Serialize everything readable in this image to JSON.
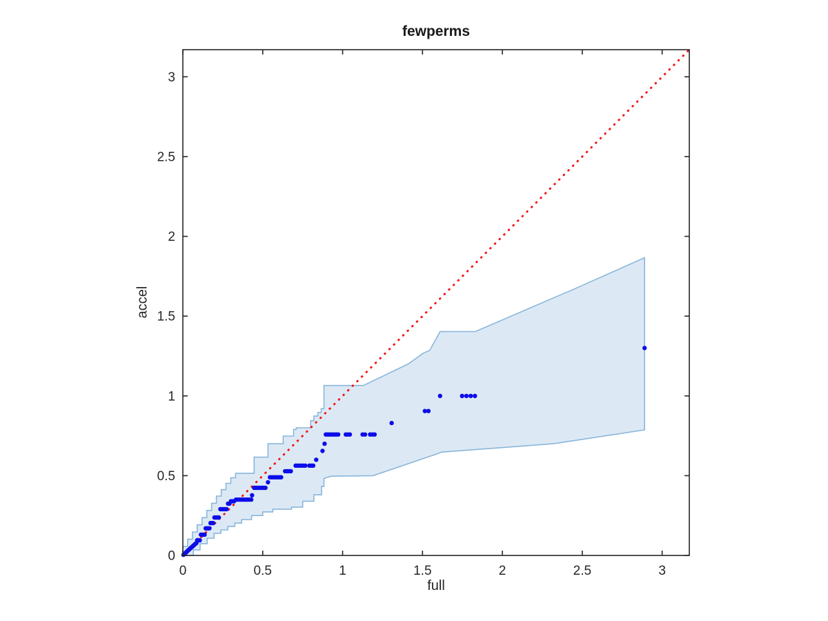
{
  "figure": {
    "background": "#ffffff"
  },
  "chart_data": {
    "type": "scatter",
    "title": "fewperms",
    "xlabel": "full",
    "ylabel": "accel",
    "xlim": [
      0,
      3.17
    ],
    "ylim": [
      0,
      3.17
    ],
    "xticks": [
      0,
      0.5,
      1,
      1.5,
      2,
      2.5,
      3
    ],
    "yticks": [
      0,
      0.5,
      1,
      1.5,
      2,
      2.5,
      3
    ],
    "xtick_labels": [
      "0",
      "0.5",
      "1",
      "1.5",
      "2",
      "2.5",
      "3"
    ],
    "ytick_labels": [
      "0",
      "0.5",
      "1",
      "1.5",
      "2",
      "2.5",
      "3"
    ],
    "grid": false,
    "legend": null,
    "box": true,
    "colors": {
      "band_fill": "#dce9f5",
      "band_edge": "#8ab6da",
      "points": "#0d0de8",
      "reference_line": "#f41412",
      "axis": "#262626"
    },
    "reference_line": {
      "meaning": "identity y = x",
      "style": "dotted",
      "from": [
        0,
        0
      ],
      "to": [
        3.17,
        3.17
      ]
    },
    "band": {
      "stepped_until_x": 0.9,
      "upper": [
        [
          0,
          0.012
        ],
        [
          0.03,
          0.057
        ],
        [
          0.06,
          0.102
        ],
        [
          0.09,
          0.147
        ],
        [
          0.12,
          0.192
        ],
        [
          0.15,
          0.237
        ],
        [
          0.18,
          0.282
        ],
        [
          0.21,
          0.327
        ],
        [
          0.24,
          0.372
        ],
        [
          0.27,
          0.412
        ],
        [
          0.3,
          0.452
        ],
        [
          0.33,
          0.487
        ],
        [
          0.364,
          0.515
        ],
        [
          0.446,
          0.515
        ],
        [
          0.468,
          0.616
        ],
        [
          0.533,
          0.616
        ],
        [
          0.628,
          0.7
        ],
        [
          0.693,
          0.748
        ],
        [
          0.71,
          0.79
        ],
        [
          0.8,
          0.8
        ],
        [
          0.82,
          0.844
        ],
        [
          0.845,
          0.874
        ],
        [
          0.866,
          0.896
        ],
        [
          0.883,
          0.92
        ],
        [
          0.883,
          1.065
        ],
        [
          1.13,
          1.065
        ],
        [
          1.41,
          1.2
        ],
        [
          1.505,
          1.268
        ],
        [
          1.545,
          1.285
        ],
        [
          1.61,
          1.403
        ],
        [
          1.83,
          1.403
        ],
        [
          2.45,
          1.67
        ],
        [
          2.89,
          1.866
        ]
      ],
      "lower": [
        [
          0,
          0
        ],
        [
          0.065,
          0.035
        ],
        [
          0.108,
          0.074
        ],
        [
          0.152,
          0.108
        ],
        [
          0.195,
          0.139
        ],
        [
          0.238,
          0.16
        ],
        [
          0.281,
          0.182
        ],
        [
          0.325,
          0.203
        ],
        [
          0.368,
          0.225
        ],
        [
          0.43,
          0.25
        ],
        [
          0.5,
          0.273
        ],
        [
          0.563,
          0.29
        ],
        [
          0.68,
          0.303
        ],
        [
          0.75,
          0.34
        ],
        [
          0.82,
          0.38
        ],
        [
          0.868,
          0.433
        ],
        [
          0.883,
          0.483
        ],
        [
          0.93,
          0.497
        ],
        [
          1.19,
          0.5
        ],
        [
          1.59,
          0.636
        ],
        [
          1.62,
          0.648
        ],
        [
          2.32,
          0.7
        ],
        [
          2.89,
          0.787
        ]
      ]
    },
    "points": [
      [
        0.004,
        0.004
      ],
      [
        0.008,
        0.008
      ],
      [
        0.012,
        0.011
      ],
      [
        0.016,
        0.015
      ],
      [
        0.02,
        0.019
      ],
      [
        0.024,
        0.023
      ],
      [
        0.028,
        0.027
      ],
      [
        0.032,
        0.031
      ],
      [
        0.036,
        0.034
      ],
      [
        0.04,
        0.038
      ],
      [
        0.045,
        0.043
      ],
      [
        0.05,
        0.047
      ],
      [
        0.055,
        0.052
      ],
      [
        0.06,
        0.056
      ],
      [
        0.065,
        0.061
      ],
      [
        0.07,
        0.065
      ],
      [
        0.075,
        0.07
      ],
      [
        0.08,
        0.074
      ],
      [
        0.085,
        0.078
      ],
      [
        0.09,
        0.095
      ],
      [
        0.098,
        0.095
      ],
      [
        0.106,
        0.095
      ],
      [
        0.113,
        0.13
      ],
      [
        0.121,
        0.13
      ],
      [
        0.129,
        0.13
      ],
      [
        0.136,
        0.13
      ],
      [
        0.143,
        0.17
      ],
      [
        0.151,
        0.17
      ],
      [
        0.159,
        0.17
      ],
      [
        0.166,
        0.17
      ],
      [
        0.173,
        0.203
      ],
      [
        0.181,
        0.203
      ],
      [
        0.19,
        0.203
      ],
      [
        0.198,
        0.238
      ],
      [
        0.207,
        0.238
      ],
      [
        0.216,
        0.238
      ],
      [
        0.225,
        0.238
      ],
      [
        0.235,
        0.29
      ],
      [
        0.245,
        0.29
      ],
      [
        0.255,
        0.29
      ],
      [
        0.265,
        0.29
      ],
      [
        0.274,
        0.29
      ],
      [
        0.283,
        0.325
      ],
      [
        0.292,
        0.325
      ],
      [
        0.301,
        0.34
      ],
      [
        0.311,
        0.34
      ],
      [
        0.321,
        0.34
      ],
      [
        0.332,
        0.35
      ],
      [
        0.344,
        0.35
      ],
      [
        0.356,
        0.35
      ],
      [
        0.368,
        0.35
      ],
      [
        0.38,
        0.35
      ],
      [
        0.392,
        0.35
      ],
      [
        0.404,
        0.35
      ],
      [
        0.416,
        0.35
      ],
      [
        0.428,
        0.35
      ],
      [
        0.433,
        0.377
      ],
      [
        0.446,
        0.424
      ],
      [
        0.458,
        0.424
      ],
      [
        0.47,
        0.424
      ],
      [
        0.482,
        0.424
      ],
      [
        0.494,
        0.424
      ],
      [
        0.506,
        0.424
      ],
      [
        0.517,
        0.424
      ],
      [
        0.533,
        0.459
      ],
      [
        0.545,
        0.49
      ],
      [
        0.557,
        0.49
      ],
      [
        0.569,
        0.49
      ],
      [
        0.581,
        0.49
      ],
      [
        0.593,
        0.49
      ],
      [
        0.605,
        0.49
      ],
      [
        0.615,
        0.49
      ],
      [
        0.64,
        0.528
      ],
      [
        0.652,
        0.528
      ],
      [
        0.664,
        0.528
      ],
      [
        0.676,
        0.528
      ],
      [
        0.706,
        0.563
      ],
      [
        0.718,
        0.563
      ],
      [
        0.73,
        0.563
      ],
      [
        0.742,
        0.563
      ],
      [
        0.754,
        0.563
      ],
      [
        0.766,
        0.563
      ],
      [
        0.792,
        0.563
      ],
      [
        0.804,
        0.563
      ],
      [
        0.816,
        0.563
      ],
      [
        0.835,
        0.6
      ],
      [
        0.874,
        0.655
      ],
      [
        0.887,
        0.7
      ],
      [
        0.895,
        0.758
      ],
      [
        0.906,
        0.758
      ],
      [
        0.917,
        0.758
      ],
      [
        0.928,
        0.758
      ],
      [
        0.939,
        0.758
      ],
      [
        0.95,
        0.758
      ],
      [
        0.961,
        0.758
      ],
      [
        0.972,
        0.758
      ],
      [
        1.02,
        0.758
      ],
      [
        1.032,
        0.758
      ],
      [
        1.045,
        0.758
      ],
      [
        1.125,
        0.758
      ],
      [
        1.14,
        0.758
      ],
      [
        1.172,
        0.758
      ],
      [
        1.187,
        0.758
      ],
      [
        1.2,
        0.758
      ],
      [
        1.307,
        0.83
      ],
      [
        1.515,
        0.905
      ],
      [
        1.537,
        0.905
      ],
      [
        1.61,
        1.0
      ],
      [
        1.748,
        1.0
      ],
      [
        1.775,
        1.0
      ],
      [
        1.802,
        1.0
      ],
      [
        1.828,
        1.0
      ],
      [
        2.89,
        1.3
      ]
    ]
  }
}
